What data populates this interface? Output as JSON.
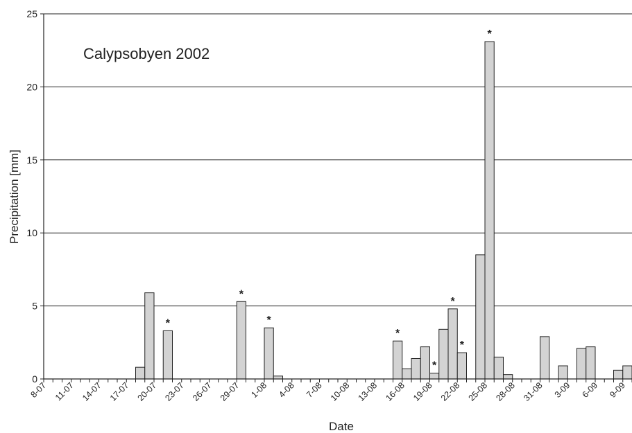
{
  "chart_data": {
    "type": "bar",
    "title": "Calypsobyen 2002",
    "xlabel": "Date",
    "ylabel": "Precipitation [mm]",
    "ylim": [
      0,
      25
    ],
    "yticks": [
      "0",
      "5",
      "10",
      "15",
      "20",
      "25"
    ],
    "ytick_values": [
      0,
      5,
      10,
      15,
      20,
      25
    ],
    "grid": true,
    "colors": {
      "bar_fill": "#d3d3d3",
      "bar_edge": "#222222",
      "grid": "#222222"
    },
    "date_range": [
      "8-07",
      "10-09"
    ],
    "xtick_labels": [
      "8-07",
      "11-07",
      "14-07",
      "17-07",
      "20-07",
      "23-07",
      "26-07",
      "29-07",
      "1-08",
      "4-08",
      "7-08",
      "10-08",
      "13-08",
      "16-08",
      "19-08",
      "22-08",
      "25-08",
      "28-08",
      "31-08",
      "3-09",
      "6-09",
      "9-09"
    ],
    "xtick_dates": [
      "8-07",
      "11-07",
      "14-07",
      "17-07",
      "20-07",
      "23-07",
      "26-07",
      "29-07",
      "1-08",
      "4-08",
      "7-08",
      "10-08",
      "13-08",
      "16-08",
      "19-08",
      "22-08",
      "25-08",
      "28-08",
      "31-08",
      "3-09",
      "6-09",
      "9-09"
    ],
    "values": [
      {
        "date": "18-07",
        "value": 0.8
      },
      {
        "date": "19-07",
        "value": 5.9
      },
      {
        "date": "21-07",
        "value": 3.3,
        "marked": true
      },
      {
        "date": "29-07",
        "value": 5.3,
        "marked": true
      },
      {
        "date": "1-08",
        "value": 3.5,
        "marked": true
      },
      {
        "date": "2-08",
        "value": 0.2
      },
      {
        "date": "15-08",
        "value": 2.6,
        "marked": true
      },
      {
        "date": "16-08",
        "value": 0.7
      },
      {
        "date": "17-08",
        "value": 1.4
      },
      {
        "date": "18-08",
        "value": 2.2
      },
      {
        "date": "19-08",
        "value": 0.4,
        "marked": true
      },
      {
        "date": "20-08",
        "value": 3.4
      },
      {
        "date": "21-08",
        "value": 4.8,
        "marked": true
      },
      {
        "date": "22-08",
        "value": 1.8,
        "marked": true
      },
      {
        "date": "24-08",
        "value": 8.5
      },
      {
        "date": "25-08",
        "value": 23.1,
        "marked": true
      },
      {
        "date": "26-08",
        "value": 1.5
      },
      {
        "date": "27-08",
        "value": 0.3
      },
      {
        "date": "31-08",
        "value": 2.9
      },
      {
        "date": "2-09",
        "value": 0.9
      },
      {
        "date": "4-09",
        "value": 2.1
      },
      {
        "date": "5-09",
        "value": 2.2
      },
      {
        "date": "8-09",
        "value": 0.6
      },
      {
        "date": "9-09",
        "value": 0.9
      }
    ],
    "marker_symbol": "*"
  }
}
